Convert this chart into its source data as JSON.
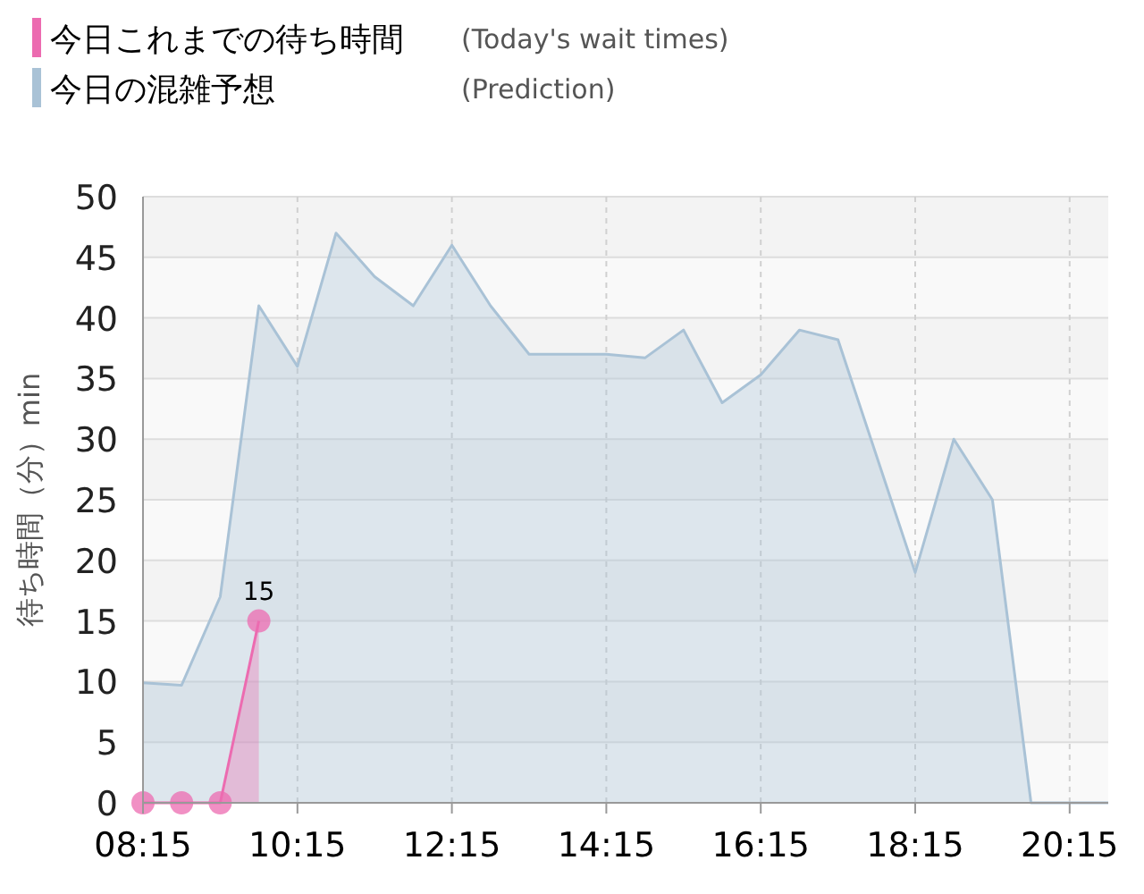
{
  "chart_data": {
    "type": "area",
    "ylabel": "待ち時間（分）min",
    "x": [
      8.25,
      8.75,
      9.25,
      9.75,
      10.25,
      10.75,
      11.25,
      11.75,
      12.25,
      12.75,
      13.25,
      13.75,
      14.25,
      14.75,
      15.25,
      15.75,
      16.25,
      16.75,
      17.25,
      17.75,
      18.25,
      18.75,
      19.25,
      19.75,
      20.25,
      20.75
    ],
    "series": [
      {
        "name": "今日これまでの待ち時間",
        "color": "#ec6bb0",
        "marker": "circle",
        "x": [
          8.25,
          8.75,
          9.25,
          9.75
        ],
        "values": [
          0,
          0,
          0,
          15
        ],
        "value_labels": [
          null,
          null,
          null,
          "15"
        ]
      },
      {
        "name": "今日の混雑予想",
        "color": "#a9c2d6",
        "marker": "none",
        "values": [
          9.9,
          9.7,
          17,
          41,
          36,
          47,
          43.4,
          41,
          46,
          41,
          37,
          37,
          37,
          36.7,
          39,
          33,
          35.3,
          39,
          38.2,
          28.6,
          19,
          30,
          25,
          0,
          0,
          0
        ]
      }
    ],
    "annotations": [
      "(Today's wait times)",
      "(Prediction)"
    ],
    "xlim": [
      8.25,
      20.75
    ],
    "ylim": [
      0,
      50
    ],
    "xticks": [
      {
        "value": 8.25,
        "label": "08:15"
      },
      {
        "value": 10.25,
        "label": "10:15"
      },
      {
        "value": 12.25,
        "label": "12:15"
      },
      {
        "value": 14.25,
        "label": "14:15"
      },
      {
        "value": 16.25,
        "label": "16:15"
      },
      {
        "value": 18.25,
        "label": "18:15"
      },
      {
        "value": 20.25,
        "label": "20:15"
      }
    ],
    "yticks": [
      0,
      5,
      10,
      15,
      20,
      25,
      30,
      35,
      40,
      45,
      50
    ],
    "grid": true,
    "legend": "top left"
  }
}
